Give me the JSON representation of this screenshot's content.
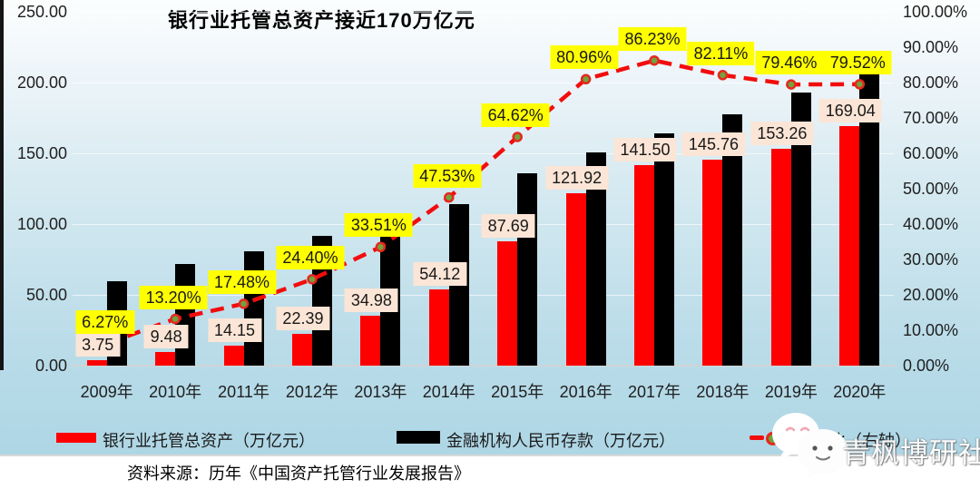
{
  "title": "银行业托管总资产接近170万亿元",
  "source": "资料来源：历年《中国资产托管行业发展报告》",
  "watermark": {
    "text": "青枫博研社"
  },
  "legend": {
    "items": [
      {
        "label": "银行业托管总资产（万亿元）",
        "swatch_color": "#fe0000",
        "type": "bar"
      },
      {
        "label": "金融机构人民币存款（万亿元）",
        "swatch_color": "#000000",
        "type": "bar"
      },
      {
        "label": "存托比（右轴）",
        "swatch_color": "#f20d0d",
        "type": "line"
      }
    ]
  },
  "chart_data": {
    "type": "bar",
    "subtype": "combo-bar-line-dual-axis",
    "title": "银行业托管总资产接近170万亿元",
    "categories": [
      "2009年",
      "2010年",
      "2011年",
      "2012年",
      "2013年",
      "2014年",
      "2015年",
      "2016年",
      "2017年",
      "2018年",
      "2019年",
      "2020年"
    ],
    "series": [
      {
        "name": "银行业托管总资产（万亿元）",
        "type": "bar",
        "axis": "left",
        "color": "#fe0000",
        "values": [
          3.75,
          9.48,
          14.15,
          22.39,
          34.98,
          54.12,
          87.69,
          121.92,
          141.5,
          145.76,
          153.26,
          169.04
        ],
        "data_labels": [
          "3.75",
          "9.48",
          "14.15",
          "22.39",
          "34.98",
          "54.12",
          "87.69",
          "121.92",
          "141.50",
          "145.76",
          "153.26",
          "169.04"
        ],
        "label_bg": "#fbe5d6"
      },
      {
        "name": "金融机构人民币存款（万亿元）",
        "type": "bar",
        "axis": "left",
        "color": "#000000",
        "estimated": true,
        "values_estimated": [
          59.8,
          71.8,
          81.0,
          91.8,
          104.4,
          113.9,
          135.7,
          150.6,
          164.1,
          177.5,
          192.9,
          212.6
        ]
      },
      {
        "name": "存托比（右轴）",
        "type": "line",
        "axis": "right",
        "color": "#f20d0d",
        "line_style": "dashed",
        "marker_fill": "#70a33f",
        "marker_ring": "#e5291d",
        "values_pct": [
          6.27,
          13.2,
          17.48,
          24.4,
          33.51,
          47.53,
          64.62,
          80.96,
          86.23,
          82.11,
          79.46,
          79.52
        ],
        "data_labels": [
          "6.27%",
          "13.20%",
          "17.48%",
          "24.40%",
          "33.51%",
          "47.53%",
          "64.62%",
          "80.96%",
          "86.23%",
          "82.11%",
          "79.46%",
          "79.52%"
        ],
        "label_bg": "#ffff00"
      }
    ],
    "left_axis": {
      "min": 0,
      "max": 250,
      "tick_labels": [
        "0.00",
        "50.00",
        "100.00",
        "150.00",
        "200.00",
        "250.00"
      ]
    },
    "right_axis": {
      "min": 0,
      "max": 100,
      "tick_labels": [
        "0.00%",
        "10.00%",
        "20.00%",
        "30.00%",
        "40.00%",
        "50.00%",
        "60.00%",
        "70.00%",
        "80.00%",
        "90.00%",
        "100.00%"
      ]
    },
    "grid": true,
    "legend_position": "bottom"
  }
}
